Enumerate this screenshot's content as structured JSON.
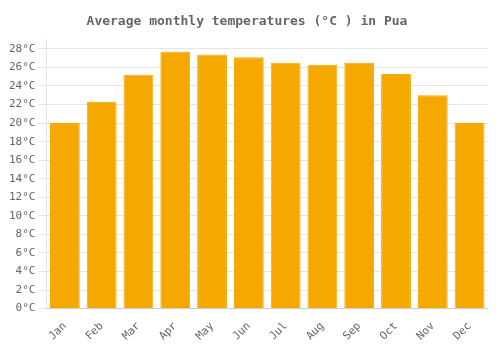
{
  "chart_data": {
    "type": "bar",
    "title": "Average monthly temperatures (°C ) in Pua",
    "categories": [
      "Jan",
      "Feb",
      "Mar",
      "Apr",
      "May",
      "Jun",
      "Jul",
      "Aug",
      "Sep",
      "Oct",
      "Nov",
      "Dec"
    ],
    "values": [
      20.0,
      22.3,
      25.2,
      27.7,
      27.4,
      27.1,
      26.5,
      26.3,
      26.5,
      25.3,
      23.0,
      20.0
    ],
    "color": "#F5A800",
    "ylim": [
      0,
      29
    ],
    "yticks": [
      {
        "value": 0,
        "label": "0°C"
      },
      {
        "value": 2,
        "label": "2°C"
      },
      {
        "value": 4,
        "label": "4°C"
      },
      {
        "value": 6,
        "label": "6°C"
      },
      {
        "value": 8,
        "label": "8°C"
      },
      {
        "value": 10,
        "label": "10°C"
      },
      {
        "value": 12,
        "label": "12°C"
      },
      {
        "value": 14,
        "label": "14°C"
      },
      {
        "value": 16,
        "label": "16°C"
      },
      {
        "value": 18,
        "label": "18°C"
      },
      {
        "value": 20,
        "label": "20°C"
      },
      {
        "value": 22,
        "label": "22°C"
      },
      {
        "value": 24,
        "label": "24°C"
      },
      {
        "value": 26,
        "label": "26°C"
      },
      {
        "value": 28,
        "label": "28°C"
      }
    ],
    "grid": true
  }
}
